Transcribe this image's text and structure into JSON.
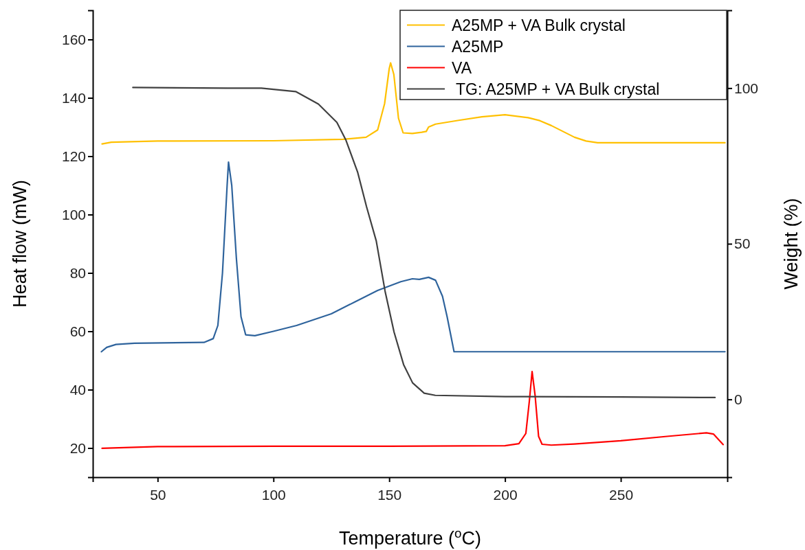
{
  "chart_data": {
    "type": "line",
    "xlabel": "Temperature ($^{o}$C)",
    "ylabel": "Heat flow (mW)",
    "y2label": "Weight (%)",
    "xlim": [
      22,
      296
    ],
    "xticks": [
      50,
      100,
      150,
      200,
      250
    ],
    "ylim": [
      10,
      170
    ],
    "yticks": [
      20,
      40,
      60,
      80,
      100,
      120,
      140,
      160
    ],
    "y2lim": [
      -25,
      125
    ],
    "y2ticks": [
      0,
      50,
      100
    ],
    "legend": "top right",
    "grid": false,
    "marker": "none",
    "line_style": "solid",
    "series": [
      {
        "name": "A25MP + VA Bulk crystal",
        "color": "#ffc000",
        "x": [
          26,
          30,
          50,
          100,
          130,
          140,
          145,
          148,
          150,
          150.6,
          152,
          154,
          156,
          160,
          164,
          166,
          167,
          170,
          180,
          190,
          200,
          210,
          215,
          220,
          225,
          230,
          235,
          240,
          260,
          295
        ],
        "values": [
          124.2,
          124.8,
          125.2,
          125.3,
          125.8,
          126.5,
          129,
          138,
          150,
          152,
          148,
          133,
          128,
          127.8,
          128.2,
          128.5,
          130,
          131,
          132.3,
          133.5,
          134.2,
          133.2,
          132.2,
          130.5,
          128.5,
          126.5,
          125.2,
          124.6,
          124.6,
          124.6
        ]
      },
      {
        "name": "A25MP",
        "color": "#2e639c",
        "x": [
          25.7,
          28,
          32,
          40,
          70,
          74,
          76,
          78,
          80,
          80.6,
          82,
          84,
          86,
          88,
          92,
          100,
          110,
          125,
          135,
          145,
          155,
          160,
          163,
          167,
          170,
          173,
          175,
          178,
          200,
          295
        ],
        "values": [
          53,
          54.5,
          55.5,
          55.9,
          56.2,
          57.5,
          62,
          80,
          110,
          118,
          110,
          85,
          65,
          58.8,
          58.5,
          60,
          62,
          66,
          70,
          74,
          77,
          78,
          77.8,
          78.5,
          77.5,
          72,
          65,
          53,
          53,
          53
        ]
      },
      {
        "name": "VA",
        "color": "#ff0000",
        "x": [
          26,
          50,
          100,
          150,
          200,
          206,
          209,
          210.5,
          211.7,
          213,
          214.5,
          216,
          220,
          230,
          250,
          270,
          287,
          290,
          294.2
        ],
        "values": [
          19.9,
          20.5,
          20.6,
          20.6,
          20.8,
          21.5,
          25,
          36,
          46.2,
          38,
          24,
          21.3,
          21,
          21.4,
          22.5,
          24,
          25.2,
          24.8,
          21.2
        ]
      },
      {
        "name": " TG: A25MP + VA Bulk crystal",
        "color": "#404040",
        "axis": "y2",
        "x": [
          39.3,
          80,
          94.8,
          109.6,
          119.4,
          127.4,
          131.3,
          136.4,
          140.2,
          144.4,
          148.2,
          152.1,
          156.2,
          160.1,
          165.1,
          169.9,
          200,
          250,
          290.7
        ],
        "values": [
          100.2,
          100,
          100,
          98.9,
          94.9,
          89,
          83.3,
          72.9,
          61.9,
          50.9,
          34.8,
          21.6,
          11.2,
          5.3,
          2,
          1.3,
          0.9,
          0.8,
          0.6
        ]
      }
    ]
  }
}
